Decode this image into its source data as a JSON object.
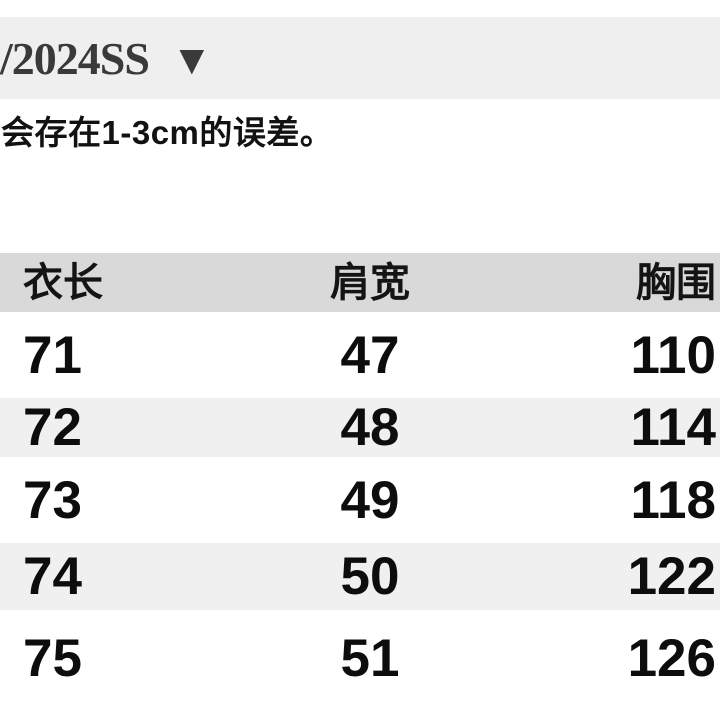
{
  "header": {
    "season_label": "/2024SS",
    "dropdown_icon": "▼"
  },
  "note": {
    "text": "会存在1-3cm的误差。"
  },
  "table": {
    "columns": [
      {
        "key": "length",
        "label": "衣长"
      },
      {
        "key": "shoulder",
        "label": "肩宽"
      },
      {
        "key": "chest",
        "label": "胸围"
      }
    ],
    "rows": [
      {
        "length": "71",
        "shoulder": "47",
        "chest": "110"
      },
      {
        "length": "72",
        "shoulder": "48",
        "chest": "114"
      },
      {
        "length": "73",
        "shoulder": "49",
        "chest": "118"
      },
      {
        "length": "74",
        "shoulder": "50",
        "chest": "122"
      },
      {
        "length": "75",
        "shoulder": "51",
        "chest": "126"
      }
    ]
  },
  "colors": {
    "top_band": "#f0eff0",
    "header_band": "#d9d9d9",
    "row_stripe": "#f1f0f1",
    "text": "#0d0d0d",
    "season_text": "#3a393b"
  }
}
